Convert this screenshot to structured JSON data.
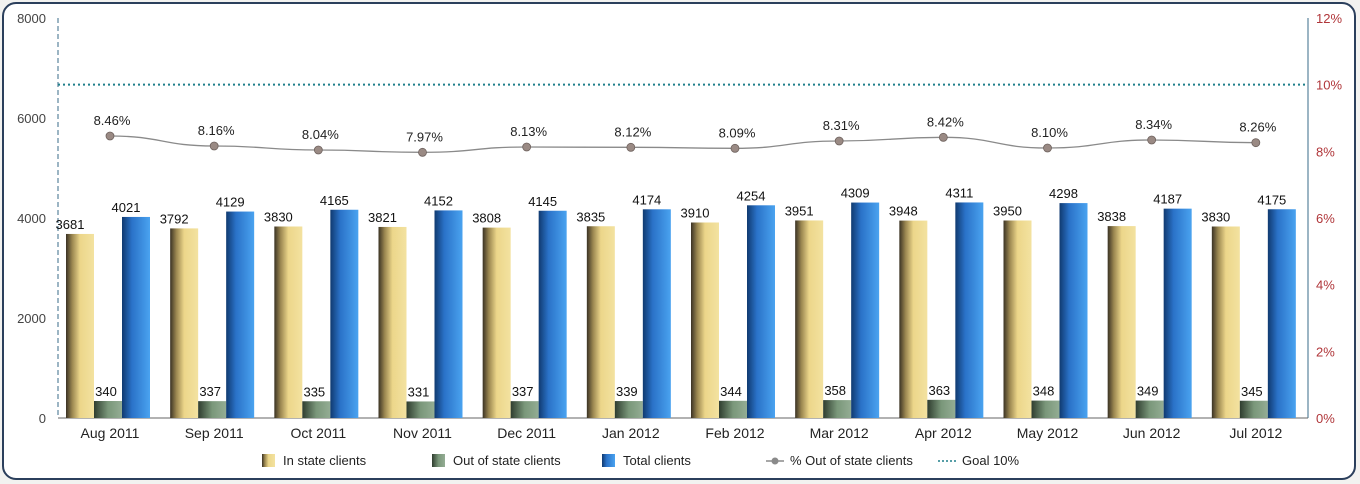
{
  "chart_data": {
    "type": "bar",
    "categories": [
      "Aug 2011",
      "Sep 2011",
      "Oct 2011",
      "Nov 2011",
      "Dec 2011",
      "Jan 2012",
      "Feb 2012",
      "Mar 2012",
      "Apr 2012",
      "May 2012",
      "Jun 2012",
      "Jul 2012"
    ],
    "series": [
      {
        "name": "In state clients",
        "type": "bar",
        "axis": "left",
        "color": "#e3cc7e",
        "values": [
          3681,
          3792,
          3830,
          3821,
          3808,
          3835,
          3910,
          3951,
          3948,
          3950,
          3838,
          3830
        ]
      },
      {
        "name": "Out of state clients",
        "type": "bar",
        "axis": "left",
        "color": "#6e8a6e",
        "values": [
          340,
          337,
          335,
          331,
          337,
          339,
          344,
          358,
          363,
          348,
          349,
          345
        ]
      },
      {
        "name": "Total clients",
        "type": "bar",
        "axis": "left",
        "color": "#2f7ed8",
        "values": [
          4021,
          4129,
          4165,
          4152,
          4145,
          4174,
          4254,
          4309,
          4311,
          4298,
          4187,
          4175
        ]
      },
      {
        "name": "% Out of state clients",
        "type": "line",
        "axis": "right",
        "color": "#8a8a8a",
        "values": [
          8.46,
          8.16,
          8.04,
          7.97,
          8.13,
          8.12,
          8.09,
          8.31,
          8.42,
          8.1,
          8.34,
          8.26
        ],
        "labels": [
          "8.46%",
          "8.16%",
          "8.04%",
          "7.97%",
          "8.13%",
          "8.12%",
          "8.09%",
          "8.31%",
          "8.42%",
          "8.10%",
          "8.34%",
          "8.26%"
        ]
      },
      {
        "name": "Goal 10%",
        "type": "line",
        "axis": "right",
        "color": "#1f7f8a",
        "values": [
          10,
          10,
          10,
          10,
          10,
          10,
          10,
          10,
          10,
          10,
          10,
          10
        ]
      }
    ],
    "y_left": {
      "min": 0,
      "max": 8000,
      "ticks": [
        "0",
        "2000",
        "4000",
        "6000",
        "8000"
      ]
    },
    "y_right": {
      "min": 0,
      "max": 12,
      "ticks": [
        "0%",
        "2%",
        "4%",
        "6%",
        "8%",
        "10%",
        "12%"
      ]
    },
    "legend_position": "bottom",
    "grid": false
  },
  "legend": {
    "in_state": "In state clients",
    "out_state": "Out of state clients",
    "total": "Total clients",
    "pct": "% Out of state clients",
    "goal": "Goal 10%"
  }
}
